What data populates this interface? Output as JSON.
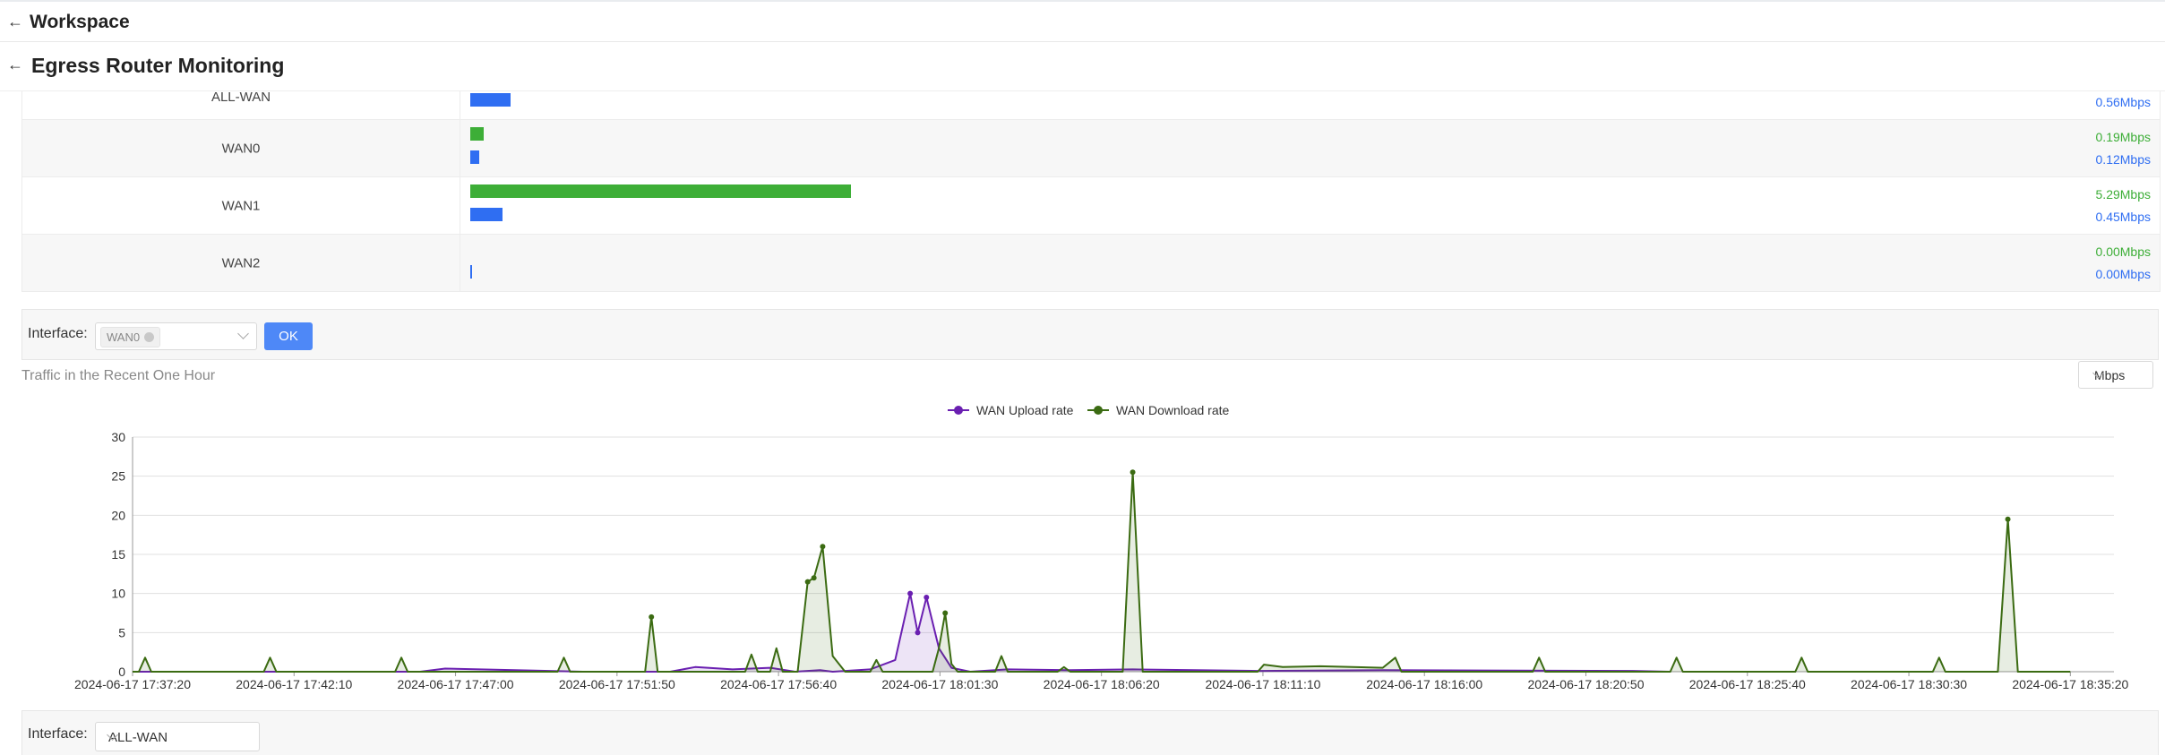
{
  "header": {
    "title": "Workspace"
  },
  "page": {
    "title": "Egress Router Monitoring"
  },
  "interfaces": [
    {
      "name": "ALL-WAN",
      "up_rate": null,
      "down_rate": "0.56Mbps",
      "up_mbps": 0,
      "down_mbps": 0.56
    },
    {
      "name": "WAN0",
      "up_rate": "0.19Mbps",
      "down_rate": "0.12Mbps",
      "up_mbps": 0.19,
      "down_mbps": 0.12
    },
    {
      "name": "WAN1",
      "up_rate": "5.29Mbps",
      "down_rate": "0.45Mbps",
      "up_mbps": 5.29,
      "down_mbps": 0.45
    },
    {
      "name": "WAN2",
      "up_rate": "0.00Mbps",
      "down_rate": "0.00Mbps",
      "up_mbps": 0,
      "down_mbps": 0
    }
  ],
  "filter": {
    "label": "Interface:",
    "selected_tag": "WAN0",
    "ok_label": "OK"
  },
  "chart_section": {
    "title": "Traffic in the Recent One Hour",
    "unit": "Mbps"
  },
  "chart_data": {
    "type": "line",
    "x": [
      "2024-06-17  17:37:20",
      "2024-06-17  17:42:10",
      "2024-06-17  17:47:00",
      "2024-06-17  17:51:50",
      "2024-06-17  17:56:40",
      "2024-06-17  18:01:30",
      "2024-06-17  18:06:20",
      "2024-06-17  18:11:10",
      "2024-06-17  18:16:00",
      "2024-06-17  18:20:50",
      "2024-06-17  18:25:40",
      "2024-06-17  18:30:30",
      "2024-06-17  18:35:20"
    ],
    "ylim": [
      0,
      30
    ],
    "yticks": [
      0,
      5,
      10,
      15,
      20,
      25,
      30
    ],
    "legend_position": "top-center",
    "grid": true,
    "series": [
      {
        "name": "WAN Upload rate",
        "color": "#6a1fb1",
        "points": [
          [
            0,
            0
          ],
          [
            2.3,
            0
          ],
          [
            2.5,
            0.4
          ],
          [
            3.6,
            0
          ],
          [
            4.3,
            0
          ],
          [
            4.5,
            0.6
          ],
          [
            4.8,
            0.3
          ],
          [
            5.1,
            0.5
          ],
          [
            5.3,
            0
          ],
          [
            5.5,
            0.2
          ],
          [
            5.6,
            0
          ],
          [
            5.9,
            0.3
          ],
          [
            6.1,
            1.5
          ],
          [
            6.22,
            10
          ],
          [
            6.28,
            5
          ],
          [
            6.35,
            9.5
          ],
          [
            6.45,
            3
          ],
          [
            6.55,
            0.5
          ],
          [
            6.7,
            0
          ],
          [
            7,
            0.3
          ],
          [
            7.5,
            0.2
          ],
          [
            8,
            0.3
          ],
          [
            8.5,
            0.2
          ],
          [
            9,
            0.1
          ],
          [
            10,
            0.2
          ],
          [
            12,
            0.1
          ],
          [
            12.3,
            0
          ]
        ]
      },
      {
        "name": "WAN Download rate",
        "color": "#3b6b12",
        "points": [
          [
            0,
            0
          ],
          [
            0.05,
            0
          ],
          [
            0.1,
            1.8
          ],
          [
            0.15,
            0
          ],
          [
            1.05,
            0
          ],
          [
            1.1,
            1.8
          ],
          [
            1.15,
            0
          ],
          [
            2.1,
            0
          ],
          [
            2.15,
            1.8
          ],
          [
            2.2,
            0
          ],
          [
            3.4,
            0
          ],
          [
            3.45,
            1.8
          ],
          [
            3.5,
            0
          ],
          [
            4.1,
            0
          ],
          [
            4.15,
            7
          ],
          [
            4.2,
            0
          ],
          [
            4.9,
            0
          ],
          [
            4.95,
            2.2
          ],
          [
            5.0,
            0
          ],
          [
            5.1,
            0
          ],
          [
            5.15,
            3
          ],
          [
            5.2,
            0
          ],
          [
            5.32,
            0
          ],
          [
            5.4,
            11.5
          ],
          [
            5.45,
            12
          ],
          [
            5.52,
            16
          ],
          [
            5.6,
            2
          ],
          [
            5.7,
            0
          ],
          [
            5.9,
            0
          ],
          [
            5.95,
            1.5
          ],
          [
            6.0,
            0
          ],
          [
            6.4,
            0
          ],
          [
            6.45,
            3
          ],
          [
            6.5,
            7.5
          ],
          [
            6.55,
            1
          ],
          [
            6.6,
            0
          ],
          [
            6.9,
            0
          ],
          [
            6.95,
            2
          ],
          [
            7.0,
            0
          ],
          [
            7.4,
            0
          ],
          [
            7.45,
            0.6
          ],
          [
            7.5,
            0
          ],
          [
            7.92,
            0
          ],
          [
            8.0,
            25.5
          ],
          [
            8.08,
            0
          ],
          [
            9.0,
            0
          ],
          [
            9.05,
            0.9
          ],
          [
            9.2,
            0.6
          ],
          [
            9.5,
            0.7
          ],
          [
            10.0,
            0.5
          ],
          [
            10.1,
            1.8
          ],
          [
            10.15,
            0
          ],
          [
            11.2,
            0
          ],
          [
            11.25,
            1.8
          ],
          [
            11.3,
            0
          ],
          [
            12.3,
            0
          ],
          [
            12.35,
            1.8
          ],
          [
            12.4,
            0
          ],
          [
            13.3,
            0
          ],
          [
            13.35,
            1.8
          ],
          [
            13.4,
            0
          ],
          [
            14.4,
            0
          ],
          [
            14.45,
            1.8
          ],
          [
            14.5,
            0
          ],
          [
            14.92,
            0
          ],
          [
            15.0,
            19.5
          ],
          [
            15.08,
            0
          ],
          [
            15.5,
            0
          ]
        ]
      }
    ]
  },
  "filter2": {
    "label": "Interface:",
    "selected": "ALL-WAN"
  },
  "icons": {
    "back": "arrow-left-icon",
    "dropdown": "chevron-down-icon",
    "clear": "clear-tag-icon"
  }
}
